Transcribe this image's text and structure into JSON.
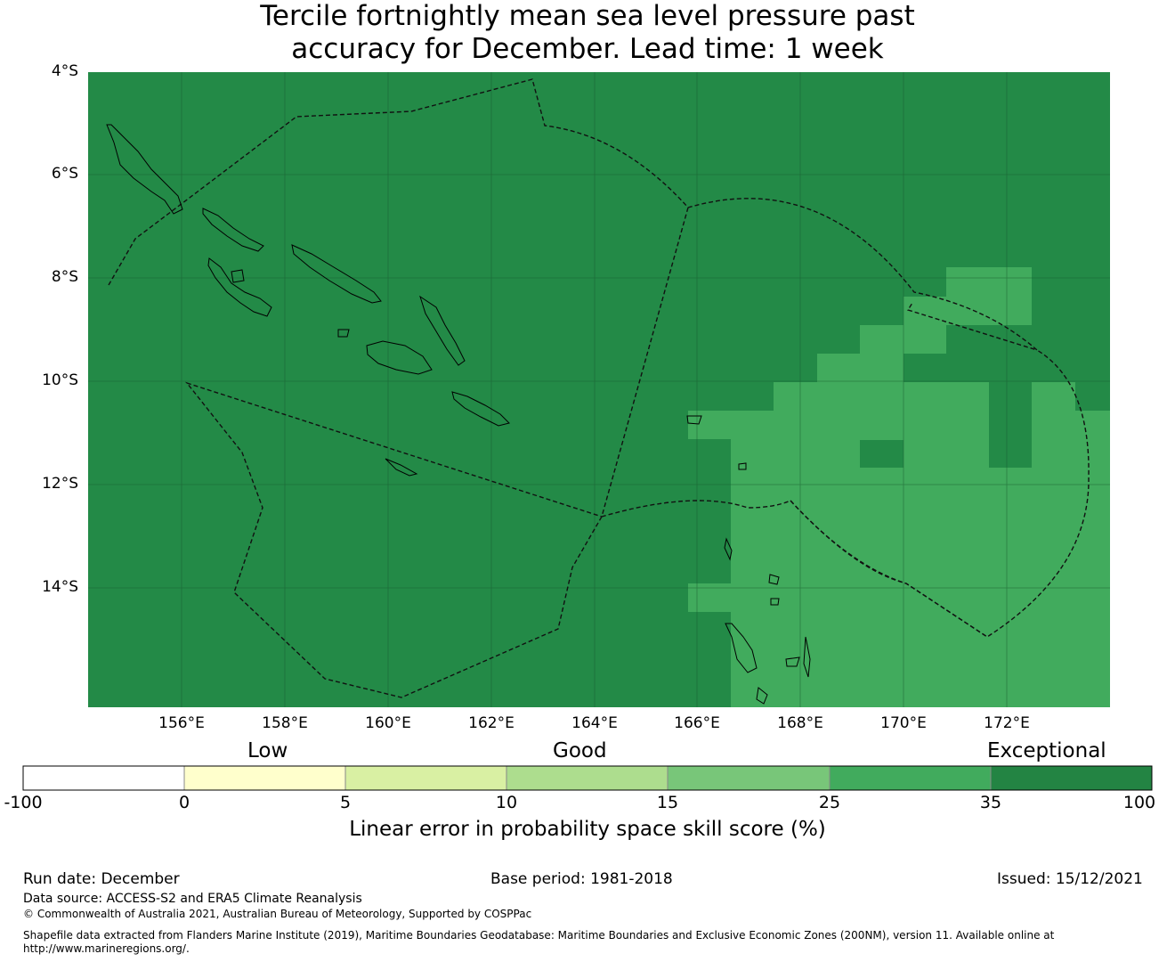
{
  "title": {
    "line1": "Tercile fortnightly mean sea level pressure past",
    "line2": "accuracy for December. Lead time: 1 week"
  },
  "map": {
    "lat_labels": [
      "4°S",
      "6°S",
      "8°S",
      "10°S",
      "12°S",
      "14°S"
    ],
    "lon_labels": [
      "156°E",
      "158°E",
      "160°E",
      "162°E",
      "164°E",
      "166°E",
      "168°E",
      "170°E",
      "172°E"
    ],
    "base_color": "#238a47",
    "higher_skill_color": "#41ab5d"
  },
  "colorbar": {
    "categories": [
      "Low",
      "Good",
      "Exceptional"
    ],
    "ticks": [
      "-100",
      "0",
      "5",
      "10",
      "15",
      "25",
      "35",
      "100"
    ],
    "colors": [
      "#ffffff",
      "#ffffcc",
      "#d9f0a3",
      "#addd8e",
      "#78c679",
      "#41ab5d",
      "#238443"
    ],
    "label": "Linear error in probability space skill score (%)"
  },
  "footer": {
    "run_date": "Run date: December",
    "base_period": "Base period: 1981-2018",
    "issued": "Issued: 15/12/2021",
    "data_source": "Data source: ACCESS-S2 and ERA5 Climate Reanalysis",
    "copyright": "© Commonwealth of Australia 2021, Australian Bureau of Meteorology, Supported by COSPPac",
    "shapefile_line1": "Shapefile data extracted from Flanders Marine Institute (2019), Maritime Boundaries Geodatabase: Maritime Boundaries and Exclusive Economic Zones (200NM), version 11. Available online at",
    "shapefile_line2": "http://www.marineregions.org/."
  }
}
